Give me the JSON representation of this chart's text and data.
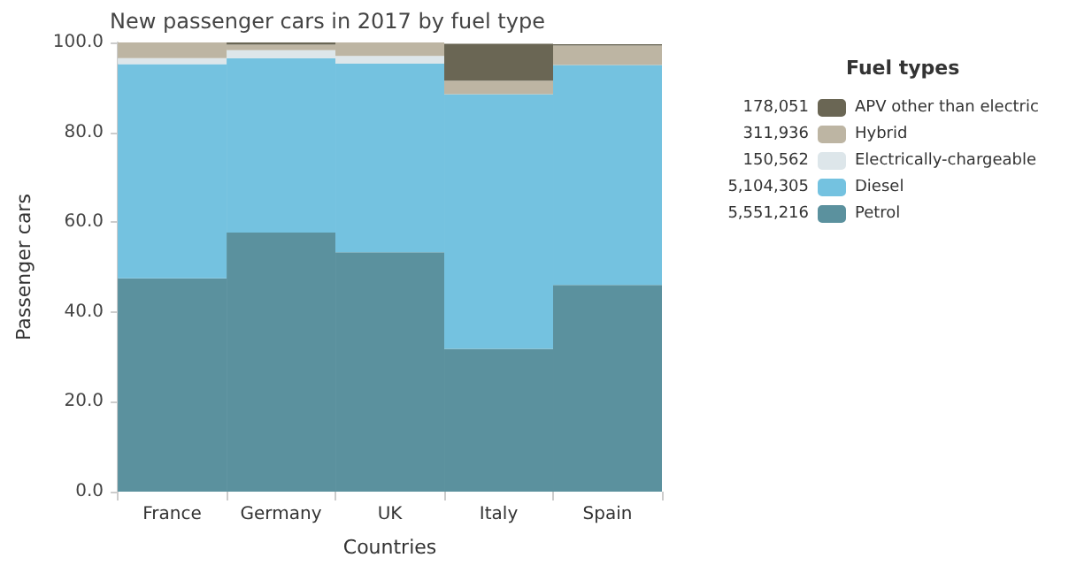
{
  "chart_data": {
    "type": "bar",
    "stacked": true,
    "title": "New passenger cars in 2017 by fuel type",
    "xlabel": "Countries",
    "ylabel": "Passenger cars",
    "legend_title": "Fuel types",
    "legend": "right",
    "categories": [
      "France",
      "Germany",
      "UK",
      "Italy",
      "Spain"
    ],
    "series": [
      {
        "name": "Petrol",
        "color": "#5b919e",
        "values": [
          47.5,
          57.7,
          53.3,
          31.8,
          46.0
        ]
      },
      {
        "name": "Diesel",
        "color": "#74c2e0",
        "values": [
          47.7,
          38.8,
          42.0,
          56.7,
          49.0
        ]
      },
      {
        "name": "Electrically-chargeable",
        "color": "#dde6ea",
        "values": [
          1.3,
          1.8,
          1.7,
          null,
          null
        ]
      },
      {
        "name": "Hybrid",
        "color": "#bdb5a3",
        "values": [
          3.5,
          1.2,
          3.0,
          3.0,
          4.3
        ]
      },
      {
        "name": "APV other than electric",
        "color": "#6a6654",
        "values": [
          0.0,
          0.5,
          0.0,
          8.2,
          0.3
        ]
      }
    ],
    "annotations": [
      "5,551,216",
      "5,104,305",
      "150,562",
      "311,936",
      "178,051"
    ],
    "ylim": [
      0,
      100
    ],
    "yticks": [
      {
        "value": 0,
        "label": "0.0"
      },
      {
        "value": 20,
        "label": "20.0"
      },
      {
        "value": 40,
        "label": "40.0"
      },
      {
        "value": 60,
        "label": "60.0"
      },
      {
        "value": 80,
        "label": "80.0"
      },
      {
        "value": 100,
        "label": "100.0"
      }
    ],
    "grid": false
  }
}
